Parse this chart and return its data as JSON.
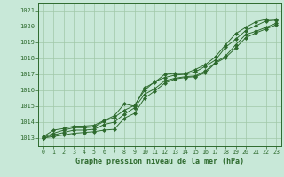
{
  "bg_color": "#c8e8d8",
  "line_color": "#2d6a2d",
  "grid_color": "#a0c8a8",
  "xlabel": "Graphe pression niveau de la mer (hPa)",
  "ylim": [
    1012.5,
    1021.5
  ],
  "xlim": [
    -0.5,
    23.5
  ],
  "yticks": [
    1013,
    1014,
    1015,
    1016,
    1017,
    1018,
    1019,
    1020,
    1021
  ],
  "xticks": [
    0,
    1,
    2,
    3,
    4,
    5,
    6,
    7,
    8,
    9,
    10,
    11,
    12,
    13,
    14,
    15,
    16,
    17,
    18,
    19,
    20,
    21,
    22,
    23
  ],
  "series": [
    [
      1013.1,
      1013.5,
      1013.6,
      1013.75,
      1013.75,
      1013.8,
      1014.1,
      1014.4,
      1015.15,
      1015.0,
      1016.15,
      1016.5,
      1017.0,
      1017.05,
      1017.05,
      1017.3,
      1017.6,
      1018.1,
      1018.85,
      1019.55,
      1019.95,
      1020.3,
      1020.45,
      1020.45
    ],
    [
      1013.05,
      1013.3,
      1013.5,
      1013.65,
      1013.65,
      1013.7,
      1014.05,
      1014.3,
      1014.75,
      1015.05,
      1016.0,
      1016.55,
      1016.8,
      1016.95,
      1017.0,
      1017.15,
      1017.5,
      1017.9,
      1018.7,
      1019.2,
      1019.75,
      1020.05,
      1020.35,
      1020.4
    ],
    [
      1013.0,
      1013.2,
      1013.35,
      1013.5,
      1013.5,
      1013.55,
      1013.85,
      1014.0,
      1014.5,
      1014.9,
      1015.75,
      1016.1,
      1016.6,
      1016.75,
      1016.85,
      1016.9,
      1017.2,
      1017.75,
      1018.15,
      1018.85,
      1019.5,
      1019.7,
      1019.95,
      1020.2
    ],
    [
      1013.0,
      1013.1,
      1013.2,
      1013.3,
      1013.35,
      1013.4,
      1013.5,
      1013.55,
      1014.25,
      1014.55,
      1015.5,
      1015.95,
      1016.45,
      1016.7,
      1016.8,
      1016.85,
      1017.1,
      1017.7,
      1018.05,
      1018.65,
      1019.3,
      1019.6,
      1019.85,
      1020.1
    ]
  ]
}
